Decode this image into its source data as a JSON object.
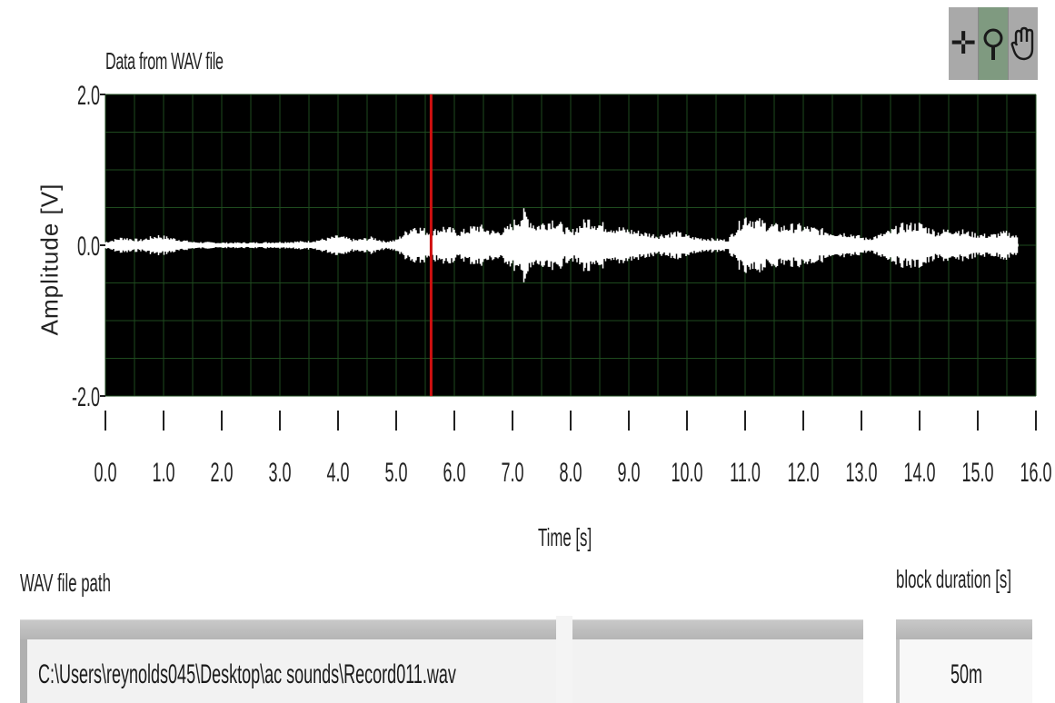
{
  "graph": {
    "title": "Data from WAV file"
  },
  "palette": {
    "tools": [
      {
        "name": "cursor-tool-icon",
        "glyph": "✛"
      },
      {
        "name": "zoom-tool-icon",
        "glyph": "🔍"
      },
      {
        "name": "pan-tool-icon",
        "glyph": "✋"
      }
    ]
  },
  "chart_data": {
    "type": "line",
    "title": "Data from WAV file",
    "xlabel": "Time [s]",
    "ylabel": "Amplitude [V]",
    "xlim": [
      0.0,
      16.0
    ],
    "ylim": [
      -2.0,
      2.0
    ],
    "x_ticks": [
      "0.0",
      "1.0",
      "2.0",
      "3.0",
      "4.0",
      "5.0",
      "6.0",
      "7.0",
      "8.0",
      "9.0",
      "10.0",
      "11.0",
      "12.0",
      "13.0",
      "14.0",
      "15.0",
      "16.0"
    ],
    "y_ticks": [
      "2.0",
      "0.0",
      "-2.0"
    ],
    "grid": true,
    "background_color": "#000000",
    "grid_color": "#1e4a1e",
    "trace_color": "#ffffff",
    "cursor_color": "#d01010",
    "cursor_x": 5.6,
    "signal_end": 15.7,
    "series": [
      {
        "envelope": [
          [
            0.0,
            0.05
          ],
          [
            0.3,
            0.12
          ],
          [
            0.6,
            0.08
          ],
          [
            0.9,
            0.15
          ],
          [
            1.2,
            0.1
          ],
          [
            1.5,
            0.05
          ],
          [
            2.0,
            0.04
          ],
          [
            2.5,
            0.04
          ],
          [
            3.0,
            0.05
          ],
          [
            3.5,
            0.06
          ],
          [
            3.8,
            0.1
          ],
          [
            4.0,
            0.14
          ],
          [
            4.3,
            0.08
          ],
          [
            4.6,
            0.12
          ],
          [
            4.8,
            0.06
          ],
          [
            5.0,
            0.08
          ],
          [
            5.3,
            0.3
          ],
          [
            5.6,
            0.2
          ],
          [
            5.8,
            0.28
          ],
          [
            6.1,
            0.2
          ],
          [
            6.4,
            0.3
          ],
          [
            6.7,
            0.2
          ],
          [
            6.9,
            0.25
          ],
          [
            7.2,
            0.5
          ],
          [
            7.4,
            0.3
          ],
          [
            7.7,
            0.4
          ],
          [
            8.0,
            0.2
          ],
          [
            8.3,
            0.4
          ],
          [
            8.6,
            0.3
          ],
          [
            8.9,
            0.25
          ],
          [
            9.2,
            0.2
          ],
          [
            9.5,
            0.15
          ],
          [
            9.8,
            0.2
          ],
          [
            10.1,
            0.12
          ],
          [
            10.4,
            0.1
          ],
          [
            10.7,
            0.08
          ],
          [
            11.0,
            0.45
          ],
          [
            11.3,
            0.35
          ],
          [
            11.6,
            0.28
          ],
          [
            11.9,
            0.3
          ],
          [
            12.2,
            0.25
          ],
          [
            12.5,
            0.2
          ],
          [
            12.8,
            0.18
          ],
          [
            13.1,
            0.1
          ],
          [
            13.4,
            0.18
          ],
          [
            13.7,
            0.3
          ],
          [
            14.0,
            0.32
          ],
          [
            14.3,
            0.2
          ],
          [
            14.6,
            0.25
          ],
          [
            14.9,
            0.18
          ],
          [
            15.2,
            0.15
          ],
          [
            15.5,
            0.2
          ],
          [
            15.7,
            0.12
          ]
        ]
      }
    ]
  },
  "controls": {
    "path_label": "WAV file path",
    "path_value": "C:\\Users\\reynolds045\\Desktop\\ac sounds\\Record011.wav",
    "duration_label": "block duration [s]",
    "duration_value": "50m"
  }
}
